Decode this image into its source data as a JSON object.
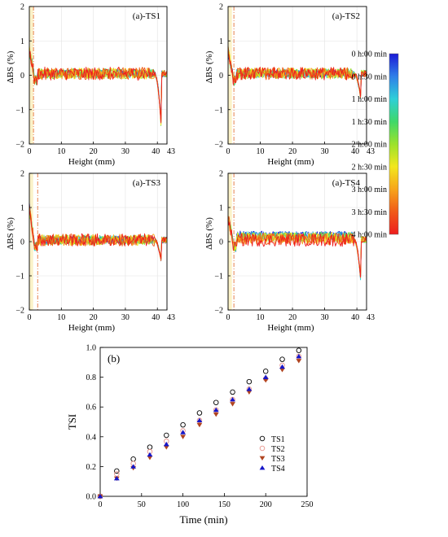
{
  "chart_data": [
    {
      "type": "line",
      "panel": "(a)-TS1",
      "title": "(a)-TS1",
      "xlabel": "Height (mm)",
      "ylabel": "ΔBS (%)",
      "xlim": [
        0,
        43
      ],
      "ylim": [
        -2,
        2
      ],
      "xticks": [
        "0",
        "10",
        "20",
        "30",
        "40",
        "43"
      ],
      "yticks": [
        "-2",
        "-1",
        "0",
        "1",
        "2"
      ],
      "grid": true,
      "marker_line_height": 1.3,
      "edge_drop": -2.0,
      "legend": "colorbar-right"
    },
    {
      "type": "line",
      "panel": "(a)-TS2",
      "title": "(a)-TS2",
      "xlabel": "Height (mm)",
      "ylabel": "ΔBS (%)",
      "xlim": [
        0,
        43
      ],
      "ylim": [
        -2,
        2
      ],
      "xticks": [
        "0",
        "10",
        "20",
        "30",
        "40",
        "43"
      ],
      "yticks": [
        "-2",
        "-1",
        "0",
        "1",
        "2"
      ],
      "grid": true,
      "marker_line_height": 1.8,
      "edge_drop": -0.9,
      "legend": "colorbar-right"
    },
    {
      "type": "line",
      "panel": "(a)-TS3",
      "title": "(a)-TS3",
      "xlabel": "Height (mm)",
      "ylabel": "ΔBS (%)",
      "xlim": [
        0,
        43
      ],
      "ylim": [
        -2,
        2
      ],
      "xticks": [
        "0",
        "10",
        "20",
        "30",
        "40",
        "43"
      ],
      "yticks": [
        "-2",
        "-1",
        "0",
        "1",
        "2"
      ],
      "grid": true,
      "marker_line_height": 2.6,
      "edge_drop": -0.8,
      "legend": "colorbar-right"
    },
    {
      "type": "line",
      "panel": "(a)-TS4",
      "title": "(a)-TS4",
      "xlabel": "Height (mm)",
      "ylabel": "ΔBS (%)",
      "xlim": [
        0,
        43
      ],
      "ylim": [
        -2,
        2
      ],
      "xticks": [
        "0",
        "10",
        "20",
        "30",
        "40",
        "43"
      ],
      "yticks": [
        "-2",
        "-1",
        "0",
        "1",
        "2"
      ],
      "grid": true,
      "marker_line_height": 1.8,
      "edge_drop": -1.5,
      "legend": "colorbar-right"
    },
    {
      "type": "scatter",
      "panel": "(b)",
      "title": "(b)",
      "xlabel": "Time (min)",
      "ylabel": "TSI",
      "xlim": [
        0,
        250
      ],
      "ylim": [
        0,
        1.0
      ],
      "xticks": [
        "0",
        "50",
        "100",
        "150",
        "200",
        "250"
      ],
      "yticks": [
        "0.0",
        "0.2",
        "0.4",
        "0.6",
        "0.8",
        "1.0"
      ],
      "grid": false,
      "legend": "center-right",
      "x": [
        0,
        20,
        40,
        60,
        80,
        100,
        120,
        140,
        160,
        180,
        200,
        220,
        240
      ],
      "series": [
        {
          "name": "TS1",
          "marker": "open-circle",
          "color": "#000000",
          "values": [
            0.0,
            0.17,
            0.25,
            0.33,
            0.41,
            0.48,
            0.56,
            0.63,
            0.7,
            0.77,
            0.84,
            0.92,
            0.98
          ]
        },
        {
          "name": "TS2",
          "marker": "open-circle",
          "color": "#e8938b",
          "values": [
            0.0,
            0.15,
            0.22,
            0.3,
            0.37,
            0.44,
            0.51,
            0.58,
            0.65,
            0.72,
            0.79,
            0.88,
            0.94
          ]
        },
        {
          "name": "TS3",
          "marker": "down-triangle",
          "color": "#b04420",
          "values": [
            0.0,
            0.12,
            0.19,
            0.26,
            0.33,
            0.4,
            0.48,
            0.55,
            0.62,
            0.7,
            0.78,
            0.85,
            0.91
          ]
        },
        {
          "name": "TS4",
          "marker": "up-triangle",
          "color": "#1616c8",
          "values": [
            0.0,
            0.12,
            0.2,
            0.28,
            0.35,
            0.43,
            0.51,
            0.58,
            0.65,
            0.72,
            0.8,
            0.87,
            0.94
          ]
        }
      ]
    }
  ],
  "colorbar": {
    "labels": [
      "0 h:00 min",
      "0 h:30 min",
      "1 h:00 min",
      "1 h:30 min",
      "2 h:00 min",
      "2 h:30 min",
      "3 h:00 min",
      "3 h:30 min",
      "4 h:00 min"
    ],
    "colors": [
      "#1a1ad6",
      "#2f7fe8",
      "#2ecfd8",
      "#3fd86a",
      "#9be22b",
      "#f2e71c",
      "#f7a51a",
      "#f05a18",
      "#ee1d1d"
    ]
  }
}
